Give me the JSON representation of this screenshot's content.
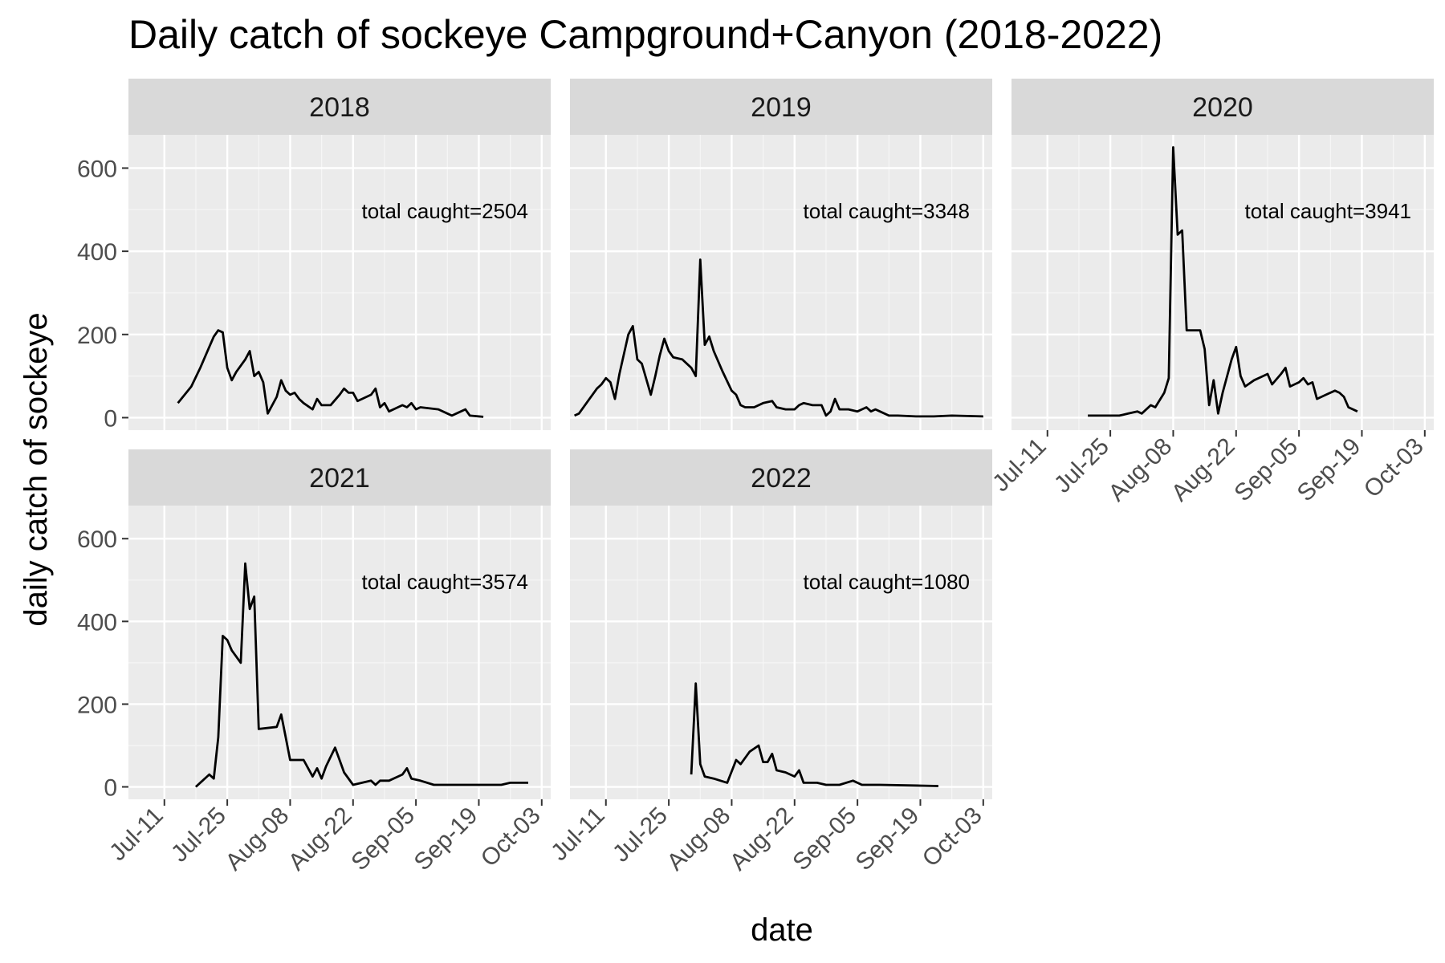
{
  "chart_data": {
    "type": "line",
    "title": "Daily catch of sockeye Campground+Canyon (2018-2022)",
    "xlabel": "date",
    "ylabel": "daily catch of sockeye",
    "ylim": [
      -30,
      680
    ],
    "y_ticks": [
      0,
      200,
      400,
      600
    ],
    "y_tick_labels": [
      "0",
      "200",
      "400",
      "600"
    ],
    "x_domain": [
      "07-03",
      "10-05"
    ],
    "x_ticks": [
      "07-11",
      "07-25",
      "08-08",
      "08-22",
      "09-05",
      "09-19",
      "10-03"
    ],
    "x_tick_labels": [
      "Jul-11",
      "Jul-25",
      "Aug-08",
      "Aug-22",
      "Sep-05",
      "Sep-19",
      "Oct-03"
    ],
    "grid": true,
    "facets": [
      {
        "label": "2018",
        "annotation": "total caught=2504",
        "points": [
          [
            "07-14",
            35
          ],
          [
            "07-17",
            75
          ],
          [
            "07-19",
            120
          ],
          [
            "07-21",
            170
          ],
          [
            "07-22",
            195
          ],
          [
            "07-23",
            210
          ],
          [
            "07-24",
            205
          ],
          [
            "07-25",
            120
          ],
          [
            "07-26",
            90
          ],
          [
            "07-27",
            110
          ],
          [
            "07-29",
            140
          ],
          [
            "07-30",
            160
          ],
          [
            "07-31",
            100
          ],
          [
            "08-01",
            110
          ],
          [
            "08-02",
            85
          ],
          [
            "08-03",
            10
          ],
          [
            "08-05",
            50
          ],
          [
            "08-06",
            90
          ],
          [
            "08-07",
            65
          ],
          [
            "08-08",
            55
          ],
          [
            "08-09",
            60
          ],
          [
            "08-10",
            45
          ],
          [
            "08-11",
            35
          ],
          [
            "08-13",
            20
          ],
          [
            "08-14",
            45
          ],
          [
            "08-15",
            30
          ],
          [
            "08-17",
            30
          ],
          [
            "08-19",
            55
          ],
          [
            "08-20",
            70
          ],
          [
            "08-21",
            60
          ],
          [
            "08-22",
            60
          ],
          [
            "08-23",
            40
          ],
          [
            "08-24",
            45
          ],
          [
            "08-26",
            55
          ],
          [
            "08-27",
            70
          ],
          [
            "08-28",
            25
          ],
          [
            "08-29",
            35
          ],
          [
            "08-30",
            15
          ],
          [
            "09-01",
            25
          ],
          [
            "09-02",
            30
          ],
          [
            "09-03",
            25
          ],
          [
            "09-04",
            35
          ],
          [
            "09-05",
            20
          ],
          [
            "09-06",
            25
          ],
          [
            "09-10",
            20
          ],
          [
            "09-12",
            10
          ],
          [
            "09-13",
            5
          ],
          [
            "09-15",
            15
          ],
          [
            "09-16",
            20
          ],
          [
            "09-17",
            5
          ],
          [
            "09-20",
            2
          ]
        ]
      },
      {
        "label": "2019",
        "annotation": "total caught=3348",
        "points": [
          [
            "07-04",
            5
          ],
          [
            "07-05",
            10
          ],
          [
            "07-07",
            40
          ],
          [
            "07-09",
            70
          ],
          [
            "07-10",
            80
          ],
          [
            "07-11",
            95
          ],
          [
            "07-12",
            85
          ],
          [
            "07-13",
            45
          ],
          [
            "07-14",
            105
          ],
          [
            "07-16",
            200
          ],
          [
            "07-17",
            220
          ],
          [
            "07-18",
            140
          ],
          [
            "07-19",
            130
          ],
          [
            "07-21",
            55
          ],
          [
            "07-22",
            100
          ],
          [
            "07-23",
            150
          ],
          [
            "07-24",
            190
          ],
          [
            "07-25",
            160
          ],
          [
            "07-26",
            145
          ],
          [
            "07-28",
            140
          ],
          [
            "07-30",
            120
          ],
          [
            "07-31",
            100
          ],
          [
            "08-01",
            380
          ],
          [
            "08-02",
            175
          ],
          [
            "08-03",
            195
          ],
          [
            "08-04",
            160
          ],
          [
            "08-06",
            110
          ],
          [
            "08-08",
            65
          ],
          [
            "08-09",
            55
          ],
          [
            "08-10",
            30
          ],
          [
            "08-11",
            25
          ],
          [
            "08-13",
            25
          ],
          [
            "08-15",
            35
          ],
          [
            "08-17",
            40
          ],
          [
            "08-18",
            25
          ],
          [
            "08-20",
            20
          ],
          [
            "08-22",
            20
          ],
          [
            "08-23",
            30
          ],
          [
            "08-24",
            35
          ],
          [
            "08-26",
            30
          ],
          [
            "08-28",
            30
          ],
          [
            "08-29",
            5
          ],
          [
            "08-30",
            15
          ],
          [
            "08-31",
            45
          ],
          [
            "09-01",
            20
          ],
          [
            "09-03",
            20
          ],
          [
            "09-05",
            15
          ],
          [
            "09-06",
            20
          ],
          [
            "09-07",
            25
          ],
          [
            "09-08",
            15
          ],
          [
            "09-09",
            20
          ],
          [
            "09-10",
            15
          ],
          [
            "09-12",
            5
          ],
          [
            "09-14",
            5
          ],
          [
            "09-18",
            3
          ],
          [
            "09-22",
            3
          ],
          [
            "09-26",
            5
          ],
          [
            "10-03",
            3
          ]
        ]
      },
      {
        "label": "2020",
        "annotation": "total caught=3941",
        "points": [
          [
            "07-20",
            5
          ],
          [
            "07-25",
            5
          ],
          [
            "07-27",
            5
          ],
          [
            "07-29",
            10
          ],
          [
            "07-31",
            15
          ],
          [
            "08-01",
            10
          ],
          [
            "08-03",
            30
          ],
          [
            "08-04",
            25
          ],
          [
            "08-06",
            60
          ],
          [
            "08-07",
            95
          ],
          [
            "08-08",
            650
          ],
          [
            "08-09",
            440
          ],
          [
            "08-10",
            450
          ],
          [
            "08-11",
            210
          ],
          [
            "08-14",
            210
          ],
          [
            "08-15",
            165
          ],
          [
            "08-16",
            30
          ],
          [
            "08-17",
            90
          ],
          [
            "08-18",
            10
          ],
          [
            "08-19",
            60
          ],
          [
            "08-21",
            140
          ],
          [
            "08-22",
            170
          ],
          [
            "08-23",
            100
          ],
          [
            "08-24",
            75
          ],
          [
            "08-26",
            90
          ],
          [
            "08-28",
            100
          ],
          [
            "08-29",
            105
          ],
          [
            "08-30",
            80
          ],
          [
            "09-01",
            105
          ],
          [
            "09-02",
            120
          ],
          [
            "09-03",
            75
          ],
          [
            "09-05",
            85
          ],
          [
            "09-06",
            95
          ],
          [
            "09-07",
            80
          ],
          [
            "09-08",
            85
          ],
          [
            "09-09",
            45
          ],
          [
            "09-11",
            55
          ],
          [
            "09-13",
            65
          ],
          [
            "09-14",
            60
          ],
          [
            "09-15",
            50
          ],
          [
            "09-16",
            25
          ],
          [
            "09-18",
            15
          ]
        ]
      },
      {
        "label": "2021",
        "annotation": "total caught=3574",
        "points": [
          [
            "07-18",
            0
          ],
          [
            "07-21",
            30
          ],
          [
            "07-22",
            20
          ],
          [
            "07-23",
            120
          ],
          [
            "07-24",
            365
          ],
          [
            "07-25",
            355
          ],
          [
            "07-26",
            330
          ],
          [
            "07-28",
            300
          ],
          [
            "07-29",
            540
          ],
          [
            "07-30",
            430
          ],
          [
            "07-31",
            460
          ],
          [
            "08-01",
            140
          ],
          [
            "08-05",
            145
          ],
          [
            "08-06",
            175
          ],
          [
            "08-07",
            120
          ],
          [
            "08-08",
            65
          ],
          [
            "08-11",
            65
          ],
          [
            "08-13",
            25
          ],
          [
            "08-14",
            45
          ],
          [
            "08-15",
            20
          ],
          [
            "08-16",
            50
          ],
          [
            "08-18",
            95
          ],
          [
            "08-19",
            65
          ],
          [
            "08-20",
            35
          ],
          [
            "08-22",
            5
          ],
          [
            "08-24",
            10
          ],
          [
            "08-26",
            15
          ],
          [
            "08-27",
            5
          ],
          [
            "08-28",
            15
          ],
          [
            "08-30",
            15
          ],
          [
            "09-02",
            30
          ],
          [
            "09-03",
            45
          ],
          [
            "09-04",
            20
          ],
          [
            "09-06",
            15
          ],
          [
            "09-09",
            5
          ],
          [
            "09-12",
            5
          ],
          [
            "09-18",
            5
          ],
          [
            "09-24",
            5
          ],
          [
            "09-26",
            10
          ],
          [
            "09-30",
            10
          ]
        ]
      },
      {
        "label": "2022",
        "annotation": "total caught=1080",
        "points": [
          [
            "07-30",
            30
          ],
          [
            "07-31",
            250
          ],
          [
            "08-01",
            55
          ],
          [
            "08-02",
            25
          ],
          [
            "08-04",
            20
          ],
          [
            "08-07",
            10
          ],
          [
            "08-09",
            65
          ],
          [
            "08-10",
            55
          ],
          [
            "08-12",
            85
          ],
          [
            "08-14",
            100
          ],
          [
            "08-15",
            60
          ],
          [
            "08-16",
            60
          ],
          [
            "08-17",
            80
          ],
          [
            "08-18",
            40
          ],
          [
            "08-20",
            35
          ],
          [
            "08-22",
            25
          ],
          [
            "08-23",
            40
          ],
          [
            "08-24",
            10
          ],
          [
            "08-27",
            10
          ],
          [
            "08-29",
            5
          ],
          [
            "09-01",
            5
          ],
          [
            "09-04",
            15
          ],
          [
            "09-06",
            5
          ],
          [
            "09-10",
            5
          ],
          [
            "09-19",
            3
          ],
          [
            "09-23",
            2
          ]
        ]
      }
    ]
  }
}
